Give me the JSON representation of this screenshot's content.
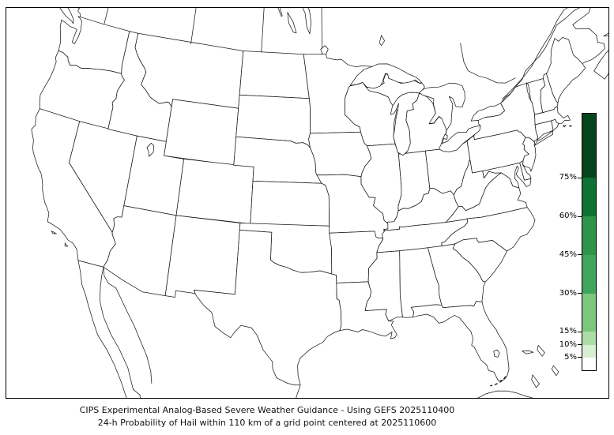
{
  "figure": {
    "title_line1": "CIPS Experimental Analog-Based Severe Weather Guidance - Using GEFS 2025110400",
    "title_line2": "24-h Probability of Hail within 110 km of a grid point centered at 2025110600"
  },
  "colorbar": {
    "range_min": 0,
    "range_max": 100,
    "ticks": [
      {
        "label": "75%",
        "value": 75
      },
      {
        "label": "60%",
        "value": 60
      },
      {
        "label": "45%",
        "value": 45
      },
      {
        "label": "30%",
        "value": 30
      },
      {
        "label": "15%",
        "value": 15
      },
      {
        "label": "10%",
        "value": 10
      },
      {
        "label": "5%",
        "value": 5
      }
    ],
    "segments": [
      {
        "from": 0,
        "to": 5,
        "color": "#ffffff"
      },
      {
        "from": 5,
        "to": 10,
        "color": "#d8efd3"
      },
      {
        "from": 10,
        "to": 15,
        "color": "#addda7"
      },
      {
        "from": 15,
        "to": 30,
        "color": "#7cc77c"
      },
      {
        "from": 30,
        "to": 45,
        "color": "#3fa45c"
      },
      {
        "from": 45,
        "to": 60,
        "color": "#2e9449"
      },
      {
        "from": 60,
        "to": 75,
        "color": "#0d7232"
      },
      {
        "from": 75,
        "to": 100,
        "color": "#04461c"
      }
    ]
  },
  "map": {
    "line_color": "#1a1a1a",
    "frame_color": "#000000",
    "background": "#ffffff",
    "shaded_probability_regions": "none"
  }
}
